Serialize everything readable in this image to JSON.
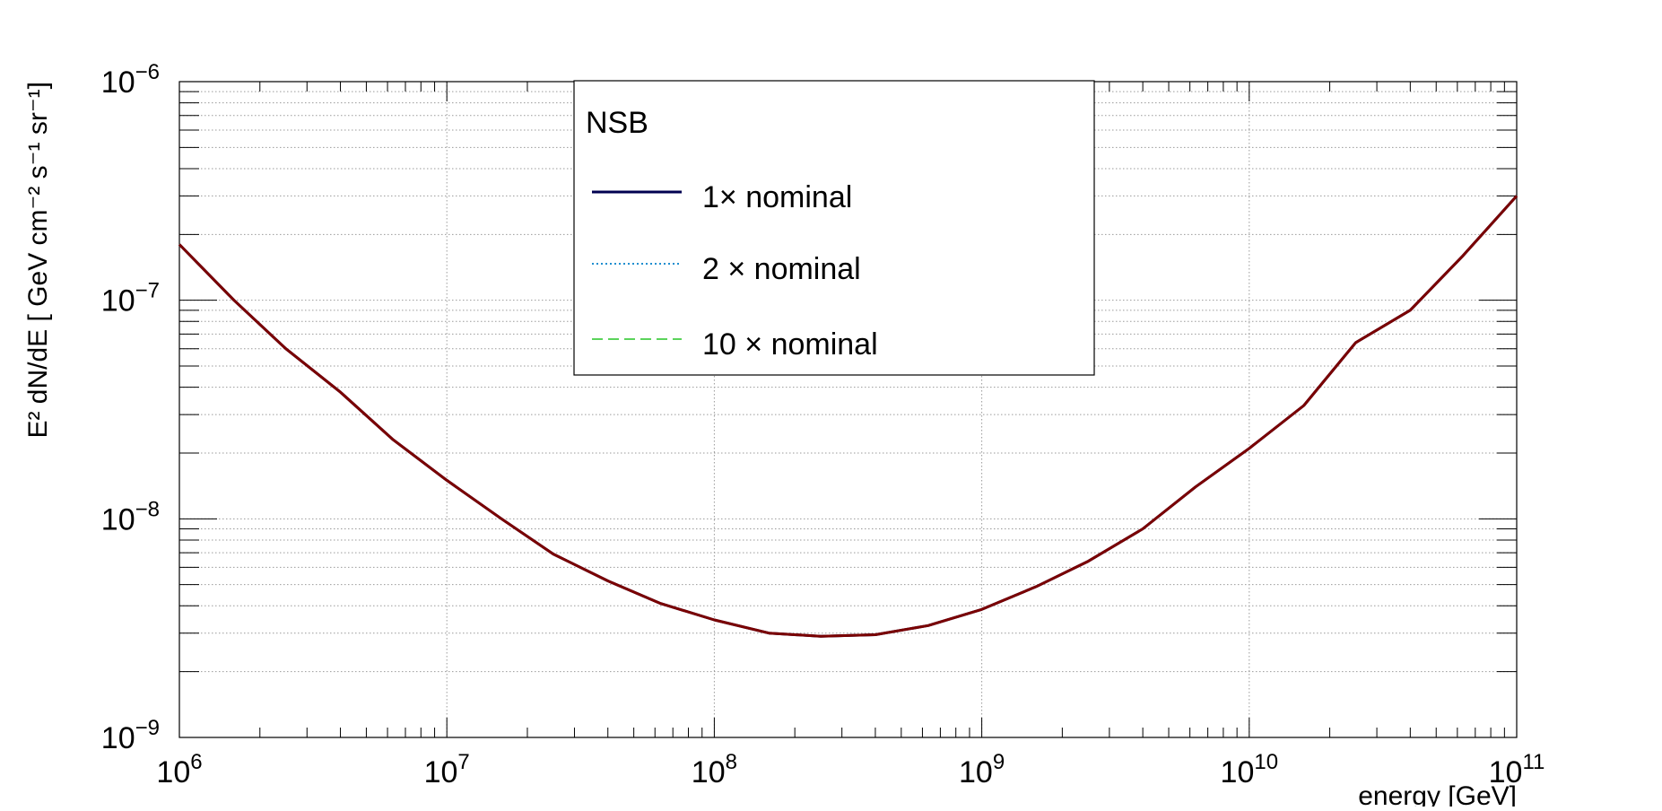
{
  "chart_data": {
    "type": "line",
    "title": "",
    "xlabel": "energy [GeV]",
    "ylabel": "E² dN/dE [ GeV cm⁻² s⁻¹ sr⁻¹]",
    "x_scale": "log",
    "y_scale": "log",
    "xlim": [
      1000000.0,
      100000000000.0
    ],
    "ylim": [
      1e-09,
      1e-06
    ],
    "grid": true,
    "legend": {
      "header": "NSB",
      "position": "top-center"
    },
    "x_tick_labels": [
      {
        "base": "10",
        "exp": "6"
      },
      {
        "base": "10",
        "exp": "7"
      },
      {
        "base": "10",
        "exp": "8"
      },
      {
        "base": "10",
        "exp": "9"
      },
      {
        "base": "10",
        "exp": "10"
      },
      {
        "base": "10",
        "exp": "11"
      }
    ],
    "y_tick_labels": [
      {
        "base": "10",
        "exp": "−6"
      },
      {
        "base": "10",
        "exp": "−7"
      },
      {
        "base": "10",
        "exp": "−8"
      },
      {
        "base": "10",
        "exp": "−9"
      }
    ],
    "series": [
      {
        "name": "1× nominal",
        "color": "#000050",
        "style": "solid",
        "x": [
          1000000.0,
          1600000.0,
          2500000.0,
          4000000.0,
          6300000.0,
          10000000.0,
          16000000.0,
          25000000.0,
          40000000.0,
          63000000.0,
          100000000.0,
          160000000.0,
          250000000.0,
          400000000.0,
          630000000.0,
          1000000000.0,
          1600000000.0,
          2500000000.0,
          4000000000.0,
          6300000000.0,
          10000000000.0,
          16000000000.0,
          25000000000.0,
          40000000000.0,
          63000000000.0,
          100000000000.0
        ],
        "y": [
          1.8e-07,
          1e-07,
          6e-08,
          3.8e-08,
          2.3e-08,
          1.5e-08,
          1e-08,
          6.9e-09,
          5.2e-09,
          4.1e-09,
          3.45e-09,
          3e-09,
          2.9e-09,
          2.95e-09,
          3.25e-09,
          3.85e-09,
          4.9e-09,
          6.4e-09,
          9e-09,
          1.4e-08,
          2.1e-08,
          3.3e-08,
          6.4e-08,
          9e-08,
          1.6e-07,
          3e-07
        ]
      },
      {
        "name": "2 × nominal",
        "color": "#1f8fd0",
        "style": "dotted",
        "x": [
          1000000.0,
          1600000.0,
          2500000.0,
          4000000.0,
          6300000.0,
          10000000.0,
          16000000.0,
          25000000.0,
          40000000.0,
          63000000.0,
          100000000.0,
          160000000.0,
          250000000.0,
          400000000.0,
          630000000.0,
          1000000000.0,
          1600000000.0,
          2500000000.0,
          4000000000.0,
          6300000000.0,
          10000000000.0,
          16000000000.0,
          25000000000.0,
          40000000000.0,
          63000000000.0,
          100000000000.0
        ],
        "y": [
          1.8e-07,
          1e-07,
          6e-08,
          3.8e-08,
          2.3e-08,
          1.5e-08,
          1e-08,
          6.9e-09,
          5.2e-09,
          4.1e-09,
          3.45e-09,
          3e-09,
          2.9e-09,
          2.95e-09,
          3.25e-09,
          3.85e-09,
          4.9e-09,
          6.4e-09,
          9e-09,
          1.4e-08,
          2.1e-08,
          3.3e-08,
          6.4e-08,
          9e-08,
          1.6e-07,
          3e-07
        ]
      },
      {
        "name": "10 × nominal",
        "color": "#5bd35b",
        "style": "dashed",
        "x": [
          1000000.0,
          1600000.0,
          2500000.0,
          4000000.0,
          6300000.0,
          10000000.0,
          16000000.0,
          25000000.0,
          40000000.0,
          63000000.0,
          100000000.0,
          160000000.0,
          250000000.0,
          400000000.0,
          630000000.0,
          1000000000.0,
          1600000000.0,
          2500000000.0,
          4000000000.0,
          6300000000.0,
          10000000000.0,
          16000000000.0,
          25000000000.0,
          40000000000.0,
          63000000000.0,
          100000000000.0
        ],
        "y": [
          1.8e-07,
          1e-07,
          6e-08,
          3.8e-08,
          2.3e-08,
          1.5e-08,
          1e-08,
          6.9e-09,
          5.2e-09,
          4.1e-09,
          3.45e-09,
          3e-09,
          2.9e-09,
          2.95e-09,
          3.25e-09,
          3.85e-09,
          4.9e-09,
          6.4e-09,
          9e-09,
          1.4e-08,
          2.1e-08,
          3.3e-08,
          6.4e-08,
          9e-08,
          1.6e-07,
          3e-07
        ]
      },
      {
        "name": "",
        "color": "#7a0000",
        "style": "solid",
        "x": [
          1000000.0,
          1600000.0,
          2500000.0,
          4000000.0,
          6300000.0,
          10000000.0,
          16000000.0,
          25000000.0,
          40000000.0,
          63000000.0,
          100000000.0,
          160000000.0,
          250000000.0,
          400000000.0,
          630000000.0,
          1000000000.0,
          1600000000.0,
          2500000000.0,
          4000000000.0,
          6300000000.0,
          10000000000.0,
          16000000000.0,
          25000000000.0,
          40000000000.0,
          63000000000.0,
          100000000000.0
        ],
        "y": [
          1.8e-07,
          1e-07,
          6e-08,
          3.8e-08,
          2.3e-08,
          1.5e-08,
          1e-08,
          6.9e-09,
          5.2e-09,
          4.1e-09,
          3.45e-09,
          3e-09,
          2.9e-09,
          2.95e-09,
          3.25e-09,
          3.85e-09,
          4.9e-09,
          6.4e-09,
          9e-09,
          1.4e-08,
          2.1e-08,
          3.3e-08,
          6.4e-08,
          9e-08,
          1.6e-07,
          3e-07
        ]
      }
    ]
  }
}
